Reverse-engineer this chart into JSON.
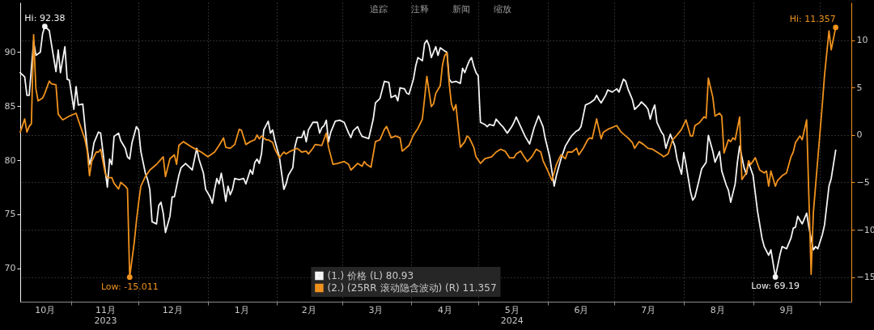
{
  "chart_data": {
    "type": "line",
    "xlim": [
      "2023-10-09",
      "2024-10-15"
    ],
    "xticks": [
      {
        "value": "2023-10-20",
        "label": "10月"
      },
      {
        "value": "2023-11-01",
        "label": null
      },
      {
        "value": "2023-11-16",
        "label": "11月\n2023"
      },
      {
        "value": "2023-12-01",
        "label": null
      },
      {
        "value": "2023-12-16",
        "label": "12月"
      },
      {
        "value": "2024-01-01",
        "label": null
      },
      {
        "value": "2024-01-16",
        "label": "1月"
      },
      {
        "value": "2024-02-01",
        "label": null
      },
      {
        "value": "2024-02-15",
        "label": "2月"
      },
      {
        "value": "2024-03-01",
        "label": null
      },
      {
        "value": "2024-03-16",
        "label": "3月"
      },
      {
        "value": "2024-04-01",
        "label": null
      },
      {
        "value": "2024-04-16",
        "label": "4月"
      },
      {
        "value": "2024-05-01",
        "label": null
      },
      {
        "value": "2024-05-16",
        "label": "5月\n2024"
      },
      {
        "value": "2024-06-01",
        "label": null
      },
      {
        "value": "2024-06-16",
        "label": "6月"
      },
      {
        "value": "2024-07-01",
        "label": null
      },
      {
        "value": "2024-07-16",
        "label": "7月"
      },
      {
        "value": "2024-08-01",
        "label": null
      },
      {
        "value": "2024-08-16",
        "label": "8月"
      },
      {
        "value": "2024-09-01",
        "label": null
      },
      {
        "value": "2024-09-16",
        "label": "9月"
      },
      {
        "value": "2024-10-01",
        "label": null
      }
    ],
    "ylim": [
      66.9,
      94.6
    ],
    "yticks": [
      70,
      75,
      80,
      85,
      90
    ],
    "y2lim": [
      -17.6,
      14.0
    ],
    "y2ticks": [
      -15,
      -10,
      -5,
      0,
      5,
      10
    ],
    "grid": true,
    "legend": "bottom",
    "series": [
      {
        "name": "(1.) 价格 (L) 80.93",
        "color": "#f4f4f4",
        "x": [
          "2023-10-09",
          "2023-10-11",
          "2023-10-12",
          "2023-10-13",
          "2023-10-15",
          "2023-10-16",
          "2023-10-18",
          "2023-10-19",
          "2023-10-20",
          "2023-10-22",
          "2023-10-23",
          "2023-10-25",
          "2023-10-26",
          "2023-10-27",
          "2023-10-29",
          "2023-10-30",
          "2023-10-31",
          "2023-11-02",
          "2023-11-03",
          "2023-11-04",
          "2023-11-06",
          "2023-11-07",
          "2023-11-08",
          "2023-11-09",
          "2023-11-10",
          "2023-11-11",
          "2023-11-13",
          "2023-11-14",
          "2023-11-15",
          "2023-11-16",
          "2023-11-17",
          "2023-11-18",
          "2023-11-19",
          "2023-11-20",
          "2023-11-22",
          "2023-11-23",
          "2023-11-25",
          "2023-11-26",
          "2023-11-27",
          "2023-11-28",
          "2023-11-30",
          "2023-12-01",
          "2023-12-02",
          "2023-12-04",
          "2023-12-05",
          "2023-12-06",
          "2023-12-07",
          "2023-12-09",
          "2023-12-10",
          "2023-12-11",
          "2023-12-12",
          "2023-12-13",
          "2023-12-15",
          "2023-12-16",
          "2023-12-17",
          "2023-12-19",
          "2023-12-20",
          "2023-12-22",
          "2023-12-24",
          "2023-12-25",
          "2023-12-27",
          "2023-12-28",
          "2023-12-30",
          "2023-12-31",
          "2024-01-02",
          "2024-01-03",
          "2024-01-04",
          "2024-01-05",
          "2024-01-06",
          "2024-01-07",
          "2024-01-08",
          "2024-01-09",
          "2024-01-10",
          "2024-01-11",
          "2024-01-12",
          "2024-01-13",
          "2024-01-15",
          "2024-01-17",
          "2024-01-18",
          "2024-01-20",
          "2024-01-21",
          "2024-01-22",
          "2024-01-23",
          "2024-01-24",
          "2024-01-25",
          "2024-01-26",
          "2024-01-28",
          "2024-01-29",
          "2024-01-30",
          "2024-01-31",
          "2024-02-02",
          "2024-02-04",
          "2024-02-05",
          "2024-02-06",
          "2024-02-08",
          "2024-02-09",
          "2024-02-10",
          "2024-02-12",
          "2024-02-13",
          "2024-02-14",
          "2024-02-15",
          "2024-02-17",
          "2024-02-19",
          "2024-02-20",
          "2024-02-21",
          "2024-02-22",
          "2024-02-23",
          "2024-02-24",
          "2024-02-25",
          "2024-02-27",
          "2024-02-29",
          "2024-03-02",
          "2024-03-04",
          "2024-03-05",
          "2024-03-06",
          "2024-03-08",
          "2024-03-09",
          "2024-03-10",
          "2024-03-13",
          "2024-03-15",
          "2024-03-16",
          "2024-03-18",
          "2024-03-20",
          "2024-03-22",
          "2024-03-23",
          "2024-03-25",
          "2024-03-26",
          "2024-03-27",
          "2024-03-29",
          "2024-03-30",
          "2024-03-31",
          "2024-04-02",
          "2024-04-03",
          "2024-04-04",
          "2024-04-06",
          "2024-04-07",
          "2024-04-08",
          "2024-04-09",
          "2024-04-10",
          "2024-04-12",
          "2024-04-13",
          "2024-04-14",
          "2024-04-16",
          "2024-04-17",
          "2024-04-18",
          "2024-04-19",
          "2024-04-21",
          "2024-04-23",
          "2024-04-24",
          "2024-04-25",
          "2024-04-26",
          "2024-04-27",
          "2024-04-28",
          "2024-04-29",
          "2024-04-30",
          "2024-05-01",
          "2024-05-02",
          "2024-05-04",
          "2024-05-05",
          "2024-05-06",
          "2024-05-08",
          "2024-05-09",
          "2024-05-11",
          "2024-05-12",
          "2024-05-14",
          "2024-05-16",
          "2024-05-17",
          "2024-05-18",
          "2024-05-20",
          "2024-05-22",
          "2024-05-24",
          "2024-05-26",
          "2024-05-28",
          "2024-05-30",
          "2024-05-31",
          "2024-06-02",
          "2024-06-04",
          "2024-06-05",
          "2024-06-07",
          "2024-06-09",
          "2024-06-11",
          "2024-06-12",
          "2024-06-14",
          "2024-06-15",
          "2024-06-16",
          "2024-06-18",
          "2024-06-20",
          "2024-06-22",
          "2024-06-23",
          "2024-06-24",
          "2024-06-25",
          "2024-06-27",
          "2024-06-28",
          "2024-06-30",
          "2024-07-02",
          "2024-07-03",
          "2024-07-05",
          "2024-07-06",
          "2024-07-07",
          "2024-07-09",
          "2024-07-10",
          "2024-07-12",
          "2024-07-13",
          "2024-07-15",
          "2024-07-16",
          "2024-07-17",
          "2024-07-18",
          "2024-07-19",
          "2024-07-20",
          "2024-07-22",
          "2024-07-23",
          "2024-07-24",
          "2024-07-25",
          "2024-07-26",
          "2024-07-28",
          "2024-07-29",
          "2024-07-31",
          "2024-08-01",
          "2024-08-02",
          "2024-08-04",
          "2024-08-05",
          "2024-08-06",
          "2024-08-08",
          "2024-08-09",
          "2024-08-11",
          "2024-08-12",
          "2024-08-14",
          "2024-08-15",
          "2024-08-17",
          "2024-08-18",
          "2024-08-20",
          "2024-08-21",
          "2024-08-22",
          "2024-08-24",
          "2024-08-25",
          "2024-08-26",
          "2024-08-28",
          "2024-08-29",
          "2024-08-30",
          "2024-09-01",
          "2024-09-03",
          "2024-09-05",
          "2024-09-06",
          "2024-09-08",
          "2024-09-09",
          "2024-09-11",
          "2024-09-13",
          "2024-09-14",
          "2024-09-16",
          "2024-09-18",
          "2024-09-19",
          "2024-09-20",
          "2024-09-21",
          "2024-09-23",
          "2024-09-25",
          "2024-09-26",
          "2024-09-28",
          "2024-09-29",
          "2024-09-30",
          "2024-10-02",
          "2024-10-03",
          "2024-10-05",
          "2024-10-06",
          "2024-10-08"
        ],
        "values": [
          88.1,
          87.7,
          86.0,
          86.0,
          91.0,
          89.7,
          90.0,
          91.7,
          92.38,
          92.0,
          90.7,
          88.2,
          90.2,
          88.1,
          90.5,
          87.5,
          87.4,
          84.7,
          86.8,
          85.1,
          85.2,
          83.1,
          81.1,
          79.6,
          80.3,
          81.6,
          82.6,
          82.5,
          80.8,
          79.1,
          77.5,
          80.1,
          79.6,
          82.2,
          82.5,
          81.8,
          81.1,
          80.3,
          80.1,
          81.6,
          83.1,
          82.8,
          80.8,
          78.8,
          78.2,
          77.3,
          74.3,
          74.1,
          75.8,
          76.1,
          75.1,
          73.3,
          74.8,
          76.6,
          76.6,
          78.6,
          79.3,
          79.7,
          79.3,
          79.1,
          81.1,
          80.1,
          78.8,
          77.3,
          76.6,
          76.0,
          77.3,
          78.3,
          77.8,
          78.8,
          77.6,
          76.2,
          77.6,
          76.8,
          77.3,
          78.3,
          78.2,
          78.3,
          77.8,
          79.1,
          78.7,
          79.8,
          80.1,
          79.7,
          80.6,
          82.8,
          83.6,
          82.5,
          82.8,
          81.8,
          80.3,
          77.3,
          77.8,
          78.6,
          79.3,
          81.3,
          82.1,
          82.1,
          82.7,
          81.7,
          82.8,
          83.5,
          83.5,
          82.5,
          83.0,
          83.2,
          83.7,
          81.7,
          82.6,
          83.6,
          83.7,
          83.5,
          82.5,
          82.1,
          82.7,
          83.1,
          82.6,
          82.2,
          82.0,
          83.8,
          85.3,
          85.7,
          87.3,
          87.2,
          85.8,
          86.0,
          85.5,
          86.7,
          86.6,
          86.2,
          86.1,
          87.5,
          88.7,
          89.5,
          89.2,
          90.8,
          91.1,
          90.6,
          89.5,
          90.5,
          89.7,
          90.4,
          90.1,
          90.0,
          87.5,
          87.2,
          87.3,
          87.1,
          88.5,
          88.1,
          88.7,
          89.2,
          89.5,
          88.7,
          88.1,
          87.8,
          83.5,
          83.3,
          83.1,
          83.3,
          83.2,
          83.8,
          83.3,
          83.1,
          82.5,
          83.1,
          83.5,
          84.0,
          83.1,
          82.2,
          81.5,
          83.0,
          84.1,
          83.1,
          82.0,
          80.3,
          77.6,
          78.6,
          80.1,
          81.3,
          82.0,
          82.3,
          82.7,
          82.8,
          83.1,
          85.1,
          85.3,
          85.6,
          86.0,
          85.6,
          85.3,
          86.0,
          86.5,
          86.3,
          86.6,
          86.3,
          87.5,
          87.3,
          86.6,
          85.6,
          84.7,
          85.1,
          85.4,
          85.0,
          84.7,
          83.8,
          84.6,
          85.1,
          83.5,
          82.6,
          82.3,
          81.1,
          81.8,
          82.4,
          81.3,
          80.1,
          78.7,
          80.7,
          79.6,
          77.1,
          76.3,
          76.6,
          78.3,
          79.2,
          79.8,
          82.3,
          80.8,
          79.8,
          80.8,
          79.0,
          77.7,
          77.2,
          76.1,
          77.8,
          79.8,
          81.3,
          79.3,
          78.7,
          79.8,
          78.6,
          75.3,
          72.8,
          72.0,
          71.2,
          71.7,
          69.19,
          71.2,
          72.0,
          71.8,
          72.8,
          73.7,
          73.8,
          74.8,
          74.1,
          75.1,
          73.8,
          71.7,
          72.0,
          71.8,
          73.1,
          74.0,
          77.6,
          78.3,
          80.93
        ],
        "value_labels": [
          null,
          null,
          null,
          null,
          null,
          null,
          null,
          null,
          "Hi: 92.38",
          null,
          null,
          null,
          null,
          null,
          null,
          null,
          null,
          null,
          null,
          null,
          null,
          null,
          null,
          null,
          null,
          null,
          null,
          null,
          null,
          null,
          null,
          null,
          null,
          null,
          null,
          null,
          null,
          null,
          null,
          null,
          null,
          null,
          null,
          null,
          null,
          null,
          null,
          null,
          null,
          null,
          null,
          null,
          null,
          null,
          null,
          null,
          null,
          null,
          null,
          null,
          null,
          null,
          null,
          null,
          null,
          null,
          null,
          null,
          null,
          null,
          null,
          null,
          null,
          null,
          null,
          null,
          null,
          null,
          null,
          null,
          null,
          null,
          null,
          null,
          null,
          null,
          null,
          null,
          null,
          null,
          null,
          null,
          null,
          null,
          null,
          null,
          null,
          null,
          null,
          null,
          null,
          null,
          null,
          null,
          null,
          null,
          null,
          null,
          null,
          null,
          null,
          null,
          null,
          null,
          null,
          null,
          null,
          null,
          null,
          null,
          null,
          null,
          null,
          null,
          null,
          null,
          null,
          null,
          null,
          null,
          null,
          null,
          null,
          null,
          null,
          null,
          null,
          null,
          null,
          null,
          null,
          null,
          null,
          null,
          null,
          null,
          null,
          null,
          null,
          null,
          null,
          null,
          null,
          null,
          null,
          null,
          null,
          null,
          null,
          null,
          null,
          null,
          null,
          null,
          null,
          null,
          null,
          null,
          null,
          null,
          null,
          null,
          null,
          null,
          null,
          null,
          null,
          null,
          null,
          null,
          null,
          null,
          null,
          null,
          null,
          null,
          null,
          null,
          null,
          null,
          null,
          null,
          null,
          null,
          null,
          null,
          null,
          null,
          null,
          null,
          null,
          null,
          null,
          null,
          null,
          null,
          null,
          null,
          null,
          null,
          null,
          null,
          null,
          null,
          null,
          null,
          null,
          null,
          null,
          null,
          null,
          null,
          null,
          null,
          null,
          null,
          null,
          null,
          null,
          null,
          null,
          null,
          null,
          null,
          null,
          null,
          null,
          null,
          null,
          null,
          null,
          null,
          null,
          null,
          null,
          "Low: 69.19",
          null,
          null,
          null,
          null,
          null,
          null,
          null,
          null,
          null,
          null,
          null,
          null,
          null,
          null,
          null,
          null,
          null,
          null
        ]
      },
      {
        "name": "(2.) (25RR 滚动隐含波动) (R) 11.357",
        "color": "#f0921e",
        "axis": "y2",
        "x": [
          "2023-10-09",
          "2023-10-11",
          "2023-10-12",
          "2023-10-13",
          "2023-10-14",
          "2023-10-15",
          "2023-10-16",
          "2023-10-17",
          "2023-10-19",
          "2023-10-20",
          "2023-10-22",
          "2023-10-23",
          "2023-10-25",
          "2023-10-26",
          "2023-10-28",
          "2023-10-31",
          "2023-11-03",
          "2023-11-04",
          "2023-11-05",
          "2023-11-07",
          "2023-11-08",
          "2023-11-09",
          "2023-11-10",
          "2023-11-12",
          "2023-11-13",
          "2023-11-14",
          "2023-11-16",
          "2023-11-17",
          "2023-11-19",
          "2023-11-20",
          "2023-11-22",
          "2023-11-23",
          "2023-11-25",
          "2023-11-26",
          "2023-11-27",
          "2023-11-29",
          "2023-11-30",
          "2023-12-01",
          "2023-12-02",
          "2023-12-04",
          "2023-12-06",
          "2023-12-09",
          "2023-12-12",
          "2023-12-13",
          "2023-12-15",
          "2023-12-17",
          "2023-12-18",
          "2023-12-19",
          "2023-12-21",
          "2023-12-25",
          "2023-12-29",
          "2024-01-01",
          "2024-01-04",
          "2024-01-06",
          "2024-01-08",
          "2024-01-09",
          "2024-01-11",
          "2024-01-13",
          "2024-01-15",
          "2024-01-16",
          "2024-01-18",
          "2024-01-20",
          "2024-01-22",
          "2024-01-23",
          "2024-01-24",
          "2024-01-25",
          "2024-01-27",
          "2024-01-28",
          "2024-01-30",
          "2024-01-31",
          "2024-02-02",
          "2024-02-04",
          "2024-02-05",
          "2024-02-07",
          "2024-02-09",
          "2024-02-10",
          "2024-02-12",
          "2024-02-14",
          "2024-02-15",
          "2024-02-17",
          "2024-02-18",
          "2024-02-21",
          "2024-02-23",
          "2024-02-24",
          "2024-02-26",
          "2024-02-28",
          "2024-03-02",
          "2024-03-04",
          "2024-03-05",
          "2024-03-08",
          "2024-03-10",
          "2024-03-11",
          "2024-03-12",
          "2024-03-14",
          "2024-03-16",
          "2024-03-18",
          "2024-03-20",
          "2024-03-21",
          "2024-03-23",
          "2024-03-25",
          "2024-03-27",
          "2024-03-28",
          "2024-03-31",
          "2024-04-02",
          "2024-04-04",
          "2024-04-06",
          "2024-04-07",
          "2024-04-08",
          "2024-04-09",
          "2024-04-10",
          "2024-04-11",
          "2024-04-12",
          "2024-04-14",
          "2024-04-15",
          "2024-04-16",
          "2024-04-17",
          "2024-04-18",
          "2024-04-19",
          "2024-04-20",
          "2024-04-21",
          "2024-04-22",
          "2024-04-23",
          "2024-04-25",
          "2024-04-26",
          "2024-04-27",
          "2024-04-29",
          "2024-04-30",
          "2024-05-02",
          "2024-05-04",
          "2024-05-07",
          "2024-05-09",
          "2024-05-11",
          "2024-05-13",
          "2024-05-15",
          "2024-05-17",
          "2024-05-18",
          "2024-05-20",
          "2024-05-21",
          "2024-05-23",
          "2024-05-25",
          "2024-05-27",
          "2024-05-29",
          "2024-05-30",
          "2024-06-01",
          "2024-06-03",
          "2024-06-05",
          "2024-06-07",
          "2024-06-09",
          "2024-06-10",
          "2024-06-12",
          "2024-06-14",
          "2024-06-15",
          "2024-06-17",
          "2024-06-19",
          "2024-06-20",
          "2024-06-21",
          "2024-06-23",
          "2024-06-25",
          "2024-06-26",
          "2024-06-28",
          "2024-07-02",
          "2024-07-04",
          "2024-07-06",
          "2024-07-07",
          "2024-07-09",
          "2024-07-10",
          "2024-07-12",
          "2024-07-14",
          "2024-07-16",
          "2024-07-18",
          "2024-07-20",
          "2024-07-22",
          "2024-07-23",
          "2024-07-25",
          "2024-07-27",
          "2024-07-29",
          "2024-07-31",
          "2024-08-02",
          "2024-08-04",
          "2024-08-05",
          "2024-08-06",
          "2024-08-08",
          "2024-08-10",
          "2024-08-11",
          "2024-08-12",
          "2024-08-14",
          "2024-08-15",
          "2024-08-17",
          "2024-08-18",
          "2024-08-19",
          "2024-08-21",
          "2024-08-22",
          "2024-08-23",
          "2024-08-24",
          "2024-08-26",
          "2024-08-27",
          "2024-08-29",
          "2024-08-30",
          "2024-08-31",
          "2024-09-02",
          "2024-09-04",
          "2024-09-06",
          "2024-09-07",
          "2024-09-08",
          "2024-09-09",
          "2024-09-11",
          "2024-09-12",
          "2024-09-14",
          "2024-09-16",
          "2024-09-18",
          "2024-09-19",
          "2024-09-20",
          "2024-09-22",
          "2024-09-23",
          "2024-09-25",
          "2024-09-27",
          "2024-09-28",
          "2024-09-30",
          "2024-10-02",
          "2024-10-03",
          "2024-10-05",
          "2024-10-06",
          "2024-10-08"
        ],
        "values": [
          0.3,
          1.7,
          0.3,
          0.9,
          1.2,
          10.6,
          4.9,
          3.6,
          3.9,
          4.4,
          5.7,
          5.4,
          5.3,
          2.2,
          1.6,
          2.0,
          2.3,
          1.6,
          0.9,
          -0.5,
          -1.7,
          -4.3,
          -2.8,
          -1.8,
          -1.8,
          -1.5,
          -4.0,
          -4.5,
          -4.5,
          -5.1,
          -5.7,
          -5.0,
          -5.4,
          -5.7,
          -15.011,
          -11.4,
          -9.1,
          -7.1,
          -5.4,
          -4.4,
          -3.7,
          -3.1,
          -2.3,
          -4.4,
          -2.5,
          -2.1,
          -3.1,
          -1.1,
          -0.7,
          -1.3,
          -1.8,
          -2.3,
          -1.8,
          -1.1,
          -0.3,
          -1.3,
          -1.4,
          -1.0,
          0.6,
          0.5,
          -1.0,
          -0.7,
          -0.5,
          0.0,
          -0.4,
          -0.1,
          -0.5,
          -0.5,
          -0.8,
          -1.5,
          -2.4,
          -1.8,
          -2.0,
          -1.7,
          -1.5,
          -1.4,
          -1.8,
          -1.7,
          -2.0,
          -1.4,
          -1.0,
          -1.1,
          0.2,
          -1.3,
          -3.1,
          -3.0,
          -2.8,
          -3.1,
          -3.7,
          -3.0,
          -3.3,
          -2.8,
          -3.1,
          -3.4,
          -0.7,
          -0.5,
          0.6,
          0.9,
          -0.3,
          -0.1,
          -0.3,
          -1.7,
          -1.1,
          0.0,
          0.7,
          1.7,
          3.9,
          6.2,
          4.6,
          3.0,
          3.3,
          4.4,
          5.2,
          7.4,
          8.4,
          8.7,
          5.4,
          3.3,
          2.6,
          3.2,
          0.9,
          -1.3,
          -0.7,
          -0.1,
          -0.3,
          -1.3,
          -2.3,
          -3.0,
          -2.5,
          -2.3,
          -1.8,
          -1.5,
          -1.7,
          -2.4,
          -2.4,
          -2.0,
          -1.7,
          -2.1,
          -2.8,
          -2.3,
          -1.5,
          -1.8,
          -2.7,
          -3.7,
          -4.8,
          -3.1,
          -2.1,
          -2.5,
          -1.8,
          -1.8,
          -1.4,
          -2.1,
          -1.4,
          -0.5,
          -0.3,
          -0.4,
          1.7,
          -0.4,
          0.3,
          0.6,
          1.0,
          0.3,
          -0.1,
          -0.3,
          -0.8,
          -1.4,
          -0.7,
          -1.0,
          -1.4,
          -1.5,
          -1.8,
          -2.1,
          -2.3,
          -2.0,
          -0.5,
          0.0,
          0.6,
          1.6,
          -0.1,
          -0.1,
          1.0,
          1.3,
          1.9,
          1.8,
          6.0,
          4.0,
          2.0,
          2.3,
          2.0,
          -1.9,
          -0.5,
          -0.7,
          -0.3,
          -0.5,
          1.9,
          -4.7,
          -4.0,
          -2.7,
          -3.1,
          -2.4,
          -3.7,
          -4.0,
          -3.8,
          -5.4,
          -3.8,
          -5.4,
          -4.8,
          -4.3,
          -4.0,
          -2.3,
          -1.8,
          -0.8,
          -0.1,
          -0.5,
          1.6,
          -14.7,
          -8.2,
          -2.5,
          3.2,
          6.3,
          11.0,
          9.0,
          11.357
        ],
        "value_labels": [
          null,
          null,
          null,
          null,
          null,
          null,
          null,
          null,
          null,
          null,
          null,
          null,
          null,
          null,
          null,
          null,
          null,
          null,
          null,
          null,
          null,
          null,
          null,
          null,
          null,
          null,
          null,
          null,
          null,
          null,
          null,
          null,
          null,
          null,
          "Low: -15.011",
          null,
          null,
          null,
          null,
          null,
          null,
          null,
          null,
          null,
          null,
          null,
          null,
          null,
          null,
          null,
          null,
          null,
          null,
          null,
          null,
          null,
          null,
          null,
          null,
          null,
          null,
          null,
          null,
          null,
          null,
          null,
          null,
          null,
          null,
          null,
          null,
          null,
          null,
          null,
          null,
          null,
          null,
          null,
          null,
          null,
          null,
          null,
          null,
          null,
          null,
          null,
          null,
          null,
          null,
          null,
          null,
          null,
          null,
          null,
          null,
          null,
          null,
          null,
          null,
          null,
          null,
          null,
          null,
          null,
          null,
          null,
          null,
          null,
          null,
          null,
          null,
          null,
          null,
          null,
          null,
          null,
          null,
          null,
          null,
          null,
          null,
          null,
          null,
          null,
          null,
          null,
          null,
          null,
          null,
          null,
          null,
          null,
          null,
          null,
          null,
          null,
          null,
          null,
          null,
          null,
          null,
          null,
          null,
          null,
          null,
          null,
          null,
          null,
          null,
          null,
          null,
          null,
          null,
          null,
          null,
          null,
          null,
          null,
          null,
          null,
          null,
          null,
          null,
          null,
          null,
          null,
          null,
          null,
          null,
          null,
          null,
          null,
          null,
          null,
          null,
          null,
          null,
          null,
          null,
          null,
          null,
          null,
          null,
          null,
          null,
          null,
          null,
          null,
          null,
          null,
          null,
          null,
          null,
          null,
          null,
          null,
          null,
          null,
          null,
          null,
          null,
          null,
          null,
          null,
          null,
          null,
          null,
          null,
          null,
          null,
          null,
          null,
          null,
          null,
          null,
          null,
          null,
          null,
          null,
          null,
          null,
          null,
          "Hi: 11.357"
        ]
      }
    ],
    "annotations": [
      "追踪",
      "注释",
      "新闻",
      "缩放"
    ]
  }
}
